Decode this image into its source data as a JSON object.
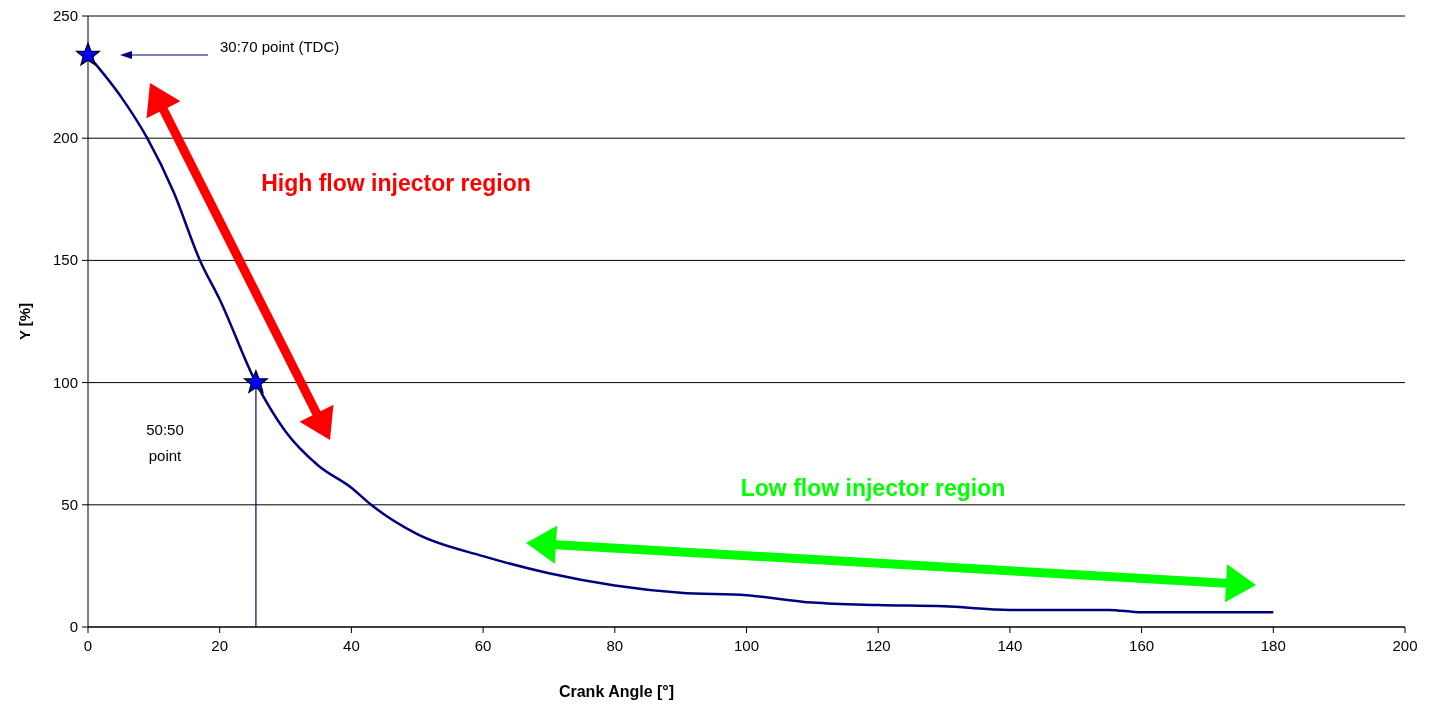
{
  "chart_data": {
    "type": "line",
    "xlabel": "Crank Angle [°]",
    "ylabel": "Y [%]",
    "xlim": [
      0,
      200
    ],
    "xticks": [
      0,
      20,
      40,
      60,
      80,
      100,
      120,
      140,
      160,
      180,
      200
    ],
    "ylim": [
      0,
      250
    ],
    "yticks": [
      0,
      50,
      100,
      150,
      200,
      250
    ],
    "grid": "y",
    "marker": "none",
    "line_style": "solid",
    "series": [
      {
        "color": "#000080",
        "x": [
          0,
          5,
          9,
          13,
          17,
          20,
          25.5,
          30,
          35,
          40,
          43,
          50,
          60,
          70,
          80,
          90,
          100,
          110,
          120,
          130,
          140,
          155,
          160,
          180
        ],
        "values": [
          234,
          217,
          200,
          178,
          150,
          134,
          100,
          80,
          66,
          57,
          50,
          38,
          29,
          22,
          17,
          14,
          13,
          10,
          9,
          8.5,
          7,
          7,
          6,
          6
        ]
      },
      {
        "type": "line",
        "color": "#000080",
        "x": [
          25.5,
          25.5
        ],
        "values": [
          0,
          100
        ]
      },
      {
        "type": "scatter",
        "marker": "star",
        "color": "#0000ff",
        "x": [
          0,
          25.5
        ],
        "values": [
          234,
          100
        ]
      }
    ],
    "annotations": [
      "30:70 point (TDC)",
      "50:50 point",
      "High flow injector region",
      "Low flow injector region"
    ]
  }
}
